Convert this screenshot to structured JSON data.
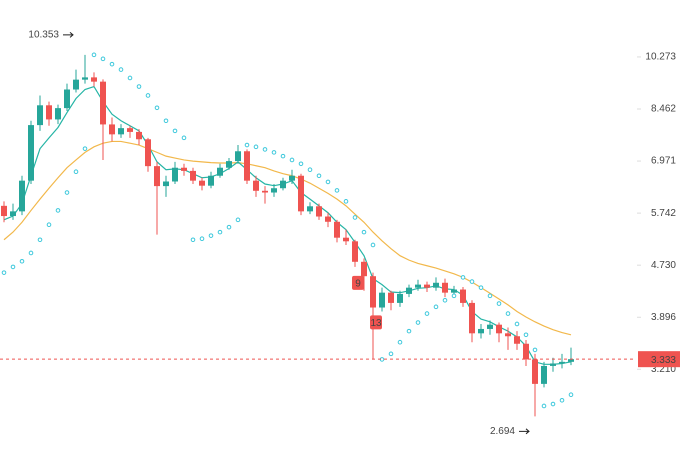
{
  "chart_data": {
    "type": "candlestick",
    "open": [
      5.9,
      5.68,
      5.78,
      6.48,
      7.97,
      8.58,
      8.14,
      8.49,
      9.1,
      9.44,
      9.52,
      9.37,
      7.99,
      7.7,
      7.88,
      7.77,
      7.56,
      6.84,
      6.35,
      6.46,
      6.8,
      6.72,
      6.48,
      6.36,
      6.6,
      6.8,
      6.97,
      7.23,
      6.48,
      6.24,
      6.2,
      6.3,
      6.48,
      6.6,
      5.78,
      5.89,
      5.67,
      5.56,
      5.24,
      5.17,
      4.79,
      4.54,
      4.04,
      4.27,
      4.11,
      4.25,
      4.35,
      4.4,
      4.35,
      4.43,
      4.27,
      4.32,
      4.11,
      3.67,
      3.73,
      3.79,
      3.67,
      3.63,
      3.53,
      3.33,
      3.04,
      3.25,
      3.28,
      3.3
    ],
    "high": [
      6.0,
      5.95,
      6.6,
      8.1,
      8.9,
      8.7,
      8.6,
      9.3,
      9.8,
      10.353,
      9.7,
      9.45,
      8.2,
      8.0,
      7.95,
      7.85,
      7.6,
      6.95,
      6.6,
      6.95,
      6.9,
      6.8,
      6.55,
      6.7,
      6.9,
      7.05,
      7.4,
      7.28,
      6.6,
      6.35,
      6.4,
      6.55,
      6.75,
      6.65,
      5.98,
      5.95,
      5.75,
      5.6,
      5.4,
      5.2,
      4.85,
      4.6,
      4.35,
      4.3,
      4.3,
      4.4,
      4.48,
      4.45,
      4.52,
      4.5,
      4.38,
      4.36,
      4.15,
      3.8,
      3.85,
      3.82,
      3.75,
      3.7,
      3.58,
      3.4,
      3.3,
      3.35,
      3.4,
      3.48
    ],
    "low": [
      5.55,
      5.6,
      5.7,
      6.4,
      7.8,
      7.95,
      8.0,
      8.4,
      9.0,
      9.3,
      9.2,
      7.0,
      7.5,
      7.6,
      7.6,
      7.4,
      6.7,
      5.3,
      6.1,
      6.4,
      6.6,
      6.4,
      6.25,
      6.3,
      6.55,
      6.75,
      6.9,
      6.4,
      6.1,
      5.95,
      6.1,
      6.25,
      6.4,
      5.7,
      5.72,
      5.6,
      5.45,
      5.15,
      5.1,
      4.7,
      4.3,
      3.33,
      3.98,
      4.0,
      4.05,
      4.2,
      4.3,
      4.28,
      4.3,
      4.2,
      4.22,
      4.05,
      3.55,
      3.6,
      3.65,
      3.55,
      3.45,
      3.45,
      3.25,
      2.694,
      3.0,
      3.18,
      3.22,
      3.26
    ],
    "close": [
      5.68,
      5.78,
      6.48,
      7.97,
      8.58,
      8.14,
      8.49,
      9.1,
      9.44,
      9.52,
      9.37,
      7.99,
      7.7,
      7.88,
      7.77,
      7.56,
      6.84,
      6.35,
      6.46,
      6.8,
      6.72,
      6.48,
      6.36,
      6.6,
      6.8,
      6.97,
      7.23,
      6.48,
      6.24,
      6.2,
      6.3,
      6.48,
      6.6,
      5.78,
      5.89,
      5.67,
      5.56,
      5.24,
      5.17,
      4.79,
      4.54,
      4.04,
      4.27,
      4.11,
      4.25,
      4.35,
      4.4,
      4.35,
      4.43,
      4.27,
      4.32,
      4.11,
      3.67,
      3.73,
      3.79,
      3.67,
      3.63,
      3.53,
      3.33,
      3.04,
      3.25,
      3.28,
      3.3,
      3.333
    ],
    "up_color": "#26a69a",
    "down_color": "#ef5350",
    "lines": [
      {
        "color": "#f2b84b",
        "values": [
          5.2,
          5.35,
          5.55,
          5.8,
          6.05,
          6.3,
          6.55,
          6.8,
          7.0,
          7.2,
          7.35,
          7.45,
          7.5,
          7.5,
          7.45,
          7.4,
          7.3,
          7.2,
          7.1,
          7.05,
          7.0,
          6.97,
          6.95,
          6.93,
          6.92,
          6.92,
          6.93,
          6.9,
          6.85,
          6.8,
          6.72,
          6.65,
          6.6,
          6.52,
          6.42,
          6.3,
          6.18,
          6.05,
          5.9,
          5.72,
          5.55,
          5.35,
          5.18,
          5.03,
          4.9,
          4.82,
          4.76,
          4.72,
          4.68,
          4.63,
          4.58,
          4.52,
          4.44,
          4.35,
          4.26,
          4.17,
          4.08,
          3.98,
          3.9,
          3.83,
          3.77,
          3.72,
          3.68,
          3.65
        ]
      },
      {
        "color": "#26b5a6",
        "values": [
          5.6,
          5.68,
          5.95,
          6.6,
          7.3,
          7.6,
          7.9,
          8.35,
          8.8,
          9.1,
          9.2,
          8.7,
          8.3,
          8.1,
          7.95,
          7.8,
          7.4,
          6.95,
          6.75,
          6.77,
          6.75,
          6.65,
          6.55,
          6.57,
          6.65,
          6.78,
          6.95,
          6.75,
          6.55,
          6.4,
          6.36,
          6.4,
          6.48,
          6.2,
          6.05,
          5.9,
          5.75,
          5.55,
          5.4,
          5.15,
          4.9,
          4.5,
          4.4,
          4.28,
          4.27,
          4.3,
          4.34,
          4.35,
          4.38,
          4.33,
          4.32,
          4.23,
          3.98,
          3.87,
          3.83,
          3.76,
          3.7,
          3.62,
          3.5,
          3.3,
          3.27,
          3.27,
          3.28,
          3.3
        ]
      }
    ],
    "sar": {
      "color": "#3cc8dc",
      "values": [
        4.6,
        4.7,
        4.8,
        4.95,
        5.2,
        5.5,
        5.8,
        6.2,
        6.7,
        7.3,
        10.353,
        10.2,
        10.0,
        9.8,
        9.5,
        9.2,
        8.9,
        8.5,
        8.1,
        7.8,
        7.6,
        5.2,
        5.22,
        5.28,
        5.35,
        5.45,
        5.6,
        7.4,
        7.35,
        7.28,
        7.2,
        7.1,
        7.0,
        6.9,
        6.75,
        6.6,
        6.45,
        6.25,
        6.0,
        5.65,
        5.35,
        5.1,
        3.33,
        3.4,
        3.55,
        3.7,
        3.82,
        3.95,
        4.05,
        4.15,
        4.22,
        4.52,
        4.45,
        4.35,
        4.22,
        4.1,
        3.95,
        3.8,
        3.65,
        3.45,
        2.8,
        2.82,
        2.86,
        2.92
      ]
    },
    "log_y": true,
    "ylim": [
      2.35,
      12.7
    ],
    "yticks": [
      10.273,
      8.462,
      6.971,
      5.742,
      {
        "value": 4.73,
        "label": "4.730"
      },
      3.896,
      {
        "value": 3.21,
        "label": "3.210"
      }
    ],
    "last_price": 3.333,
    "last_price_color": "#ef5350",
    "high_label": "10.353",
    "low_label": "2.694",
    "markers": [
      "9",
      "13"
    ]
  }
}
